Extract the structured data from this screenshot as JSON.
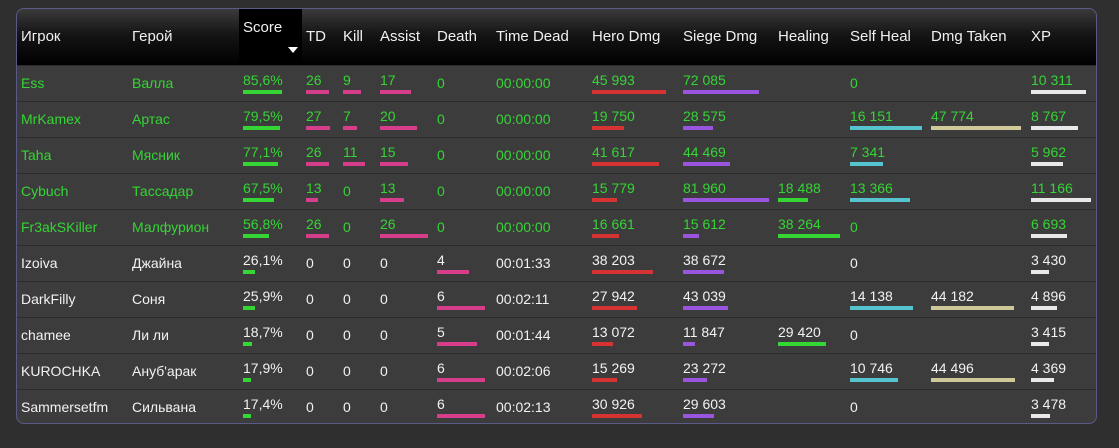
{
  "headers": {
    "player": "Игрок",
    "hero": "Герой",
    "score": "Score",
    "td": "TD",
    "kill": "Kill",
    "assist": "Assist",
    "death": "Death",
    "time_dead": "Time Dead",
    "hero_dmg": "Hero Dmg",
    "siege_dmg": "Siege Dmg",
    "healing": "Healing",
    "self_heal": "Self Heal",
    "dmg_taken": "Dmg Taken",
    "xp": "XP"
  },
  "colors": {
    "winner_text": "#35d535",
    "loser_text": "#f2f2f2",
    "score_bar": "#35d535",
    "kda_bar": "#d63e8c",
    "hero_dmg_bar": "#d63333",
    "siege_dmg_bar": "#9a55e0",
    "healing_bar": "#35d535",
    "self_heal_bar": "#56c4cf",
    "dmg_taken_bar": "#cfc99a",
    "xp_bar": "#e8e8e8"
  },
  "rows": [
    {
      "winner": true,
      "player": "Ess",
      "hero": "Валла",
      "score": "85,6%",
      "td": "26",
      "kill": "9",
      "assist": "17",
      "death": "0",
      "time_dead": "00:00:00",
      "hero_dmg": "45 993",
      "siege_dmg": "72 085",
      "healing": "",
      "self_heal": "0",
      "dmg_taken": "",
      "xp": "10 311"
    },
    {
      "winner": true,
      "player": "MrKamex",
      "hero": "Артас",
      "score": "79,5%",
      "td": "27",
      "kill": "7",
      "assist": "20",
      "death": "0",
      "time_dead": "00:00:00",
      "hero_dmg": "19 750",
      "siege_dmg": "28 575",
      "healing": "",
      "self_heal": "16 151",
      "dmg_taken": "47 774",
      "xp": "8 767"
    },
    {
      "winner": true,
      "player": "Taha",
      "hero": "Мясник",
      "score": "77,1%",
      "td": "26",
      "kill": "11",
      "assist": "15",
      "death": "0",
      "time_dead": "00:00:00",
      "hero_dmg": "41 617",
      "siege_dmg": "44 469",
      "healing": "",
      "self_heal": "7 341",
      "dmg_taken": "",
      "xp": "5 962"
    },
    {
      "winner": true,
      "player": "Cybuch",
      "hero": "Тассадар",
      "score": "67,5%",
      "td": "13",
      "kill": "0",
      "assist": "13",
      "death": "0",
      "time_dead": "00:00:00",
      "hero_dmg": "15 779",
      "siege_dmg": "81 960",
      "healing": "18 488",
      "self_heal": "13 366",
      "dmg_taken": "",
      "xp": "11 166"
    },
    {
      "winner": true,
      "player": "Fr3akSKiller",
      "hero": "Малфурион",
      "score": "56,8%",
      "td": "26",
      "kill": "0",
      "assist": "26",
      "death": "0",
      "time_dead": "00:00:00",
      "hero_dmg": "16 661",
      "siege_dmg": "15 612",
      "healing": "38 264",
      "self_heal": "0",
      "dmg_taken": "",
      "xp": "6 693"
    },
    {
      "winner": false,
      "player": "Izoiva",
      "hero": "Джайна",
      "score": "26,1%",
      "td": "0",
      "kill": "0",
      "assist": "0",
      "death": "4",
      "time_dead": "00:01:33",
      "hero_dmg": "38 203",
      "siege_dmg": "38 672",
      "healing": "",
      "self_heal": "0",
      "dmg_taken": "",
      "xp": "3 430"
    },
    {
      "winner": false,
      "player": "DarkFilly",
      "hero": "Соня",
      "score": "25,9%",
      "td": "0",
      "kill": "0",
      "assist": "0",
      "death": "6",
      "time_dead": "00:02:11",
      "hero_dmg": "27 942",
      "siege_dmg": "43 039",
      "healing": "",
      "self_heal": "14 138",
      "dmg_taken": "44 182",
      "xp": "4 896"
    },
    {
      "winner": false,
      "player": "chamee",
      "hero": "Ли ли",
      "score": "18,7%",
      "td": "0",
      "kill": "0",
      "assist": "0",
      "death": "5",
      "time_dead": "00:01:44",
      "hero_dmg": "13 072",
      "siege_dmg": "11 847",
      "healing": "29 420",
      "self_heal": "0",
      "dmg_taken": "",
      "xp": "3 415"
    },
    {
      "winner": false,
      "player": "KUROCHKA",
      "hero": "Ануб'арак",
      "score": "17,9%",
      "td": "0",
      "kill": "0",
      "assist": "0",
      "death": "6",
      "time_dead": "00:02:06",
      "hero_dmg": "15 269",
      "siege_dmg": "23 272",
      "healing": "",
      "self_heal": "10 746",
      "dmg_taken": "44 496",
      "xp": "4 369"
    },
    {
      "winner": false,
      "player": "Sammersetfm",
      "hero": "Сильвана",
      "score": "17,4%",
      "td": "0",
      "kill": "0",
      "assist": "0",
      "death": "6",
      "time_dead": "00:02:13",
      "hero_dmg": "30 926",
      "siege_dmg": "29 603",
      "healing": "",
      "self_heal": "0",
      "dmg_taken": "",
      "xp": "3 478"
    }
  ]
}
